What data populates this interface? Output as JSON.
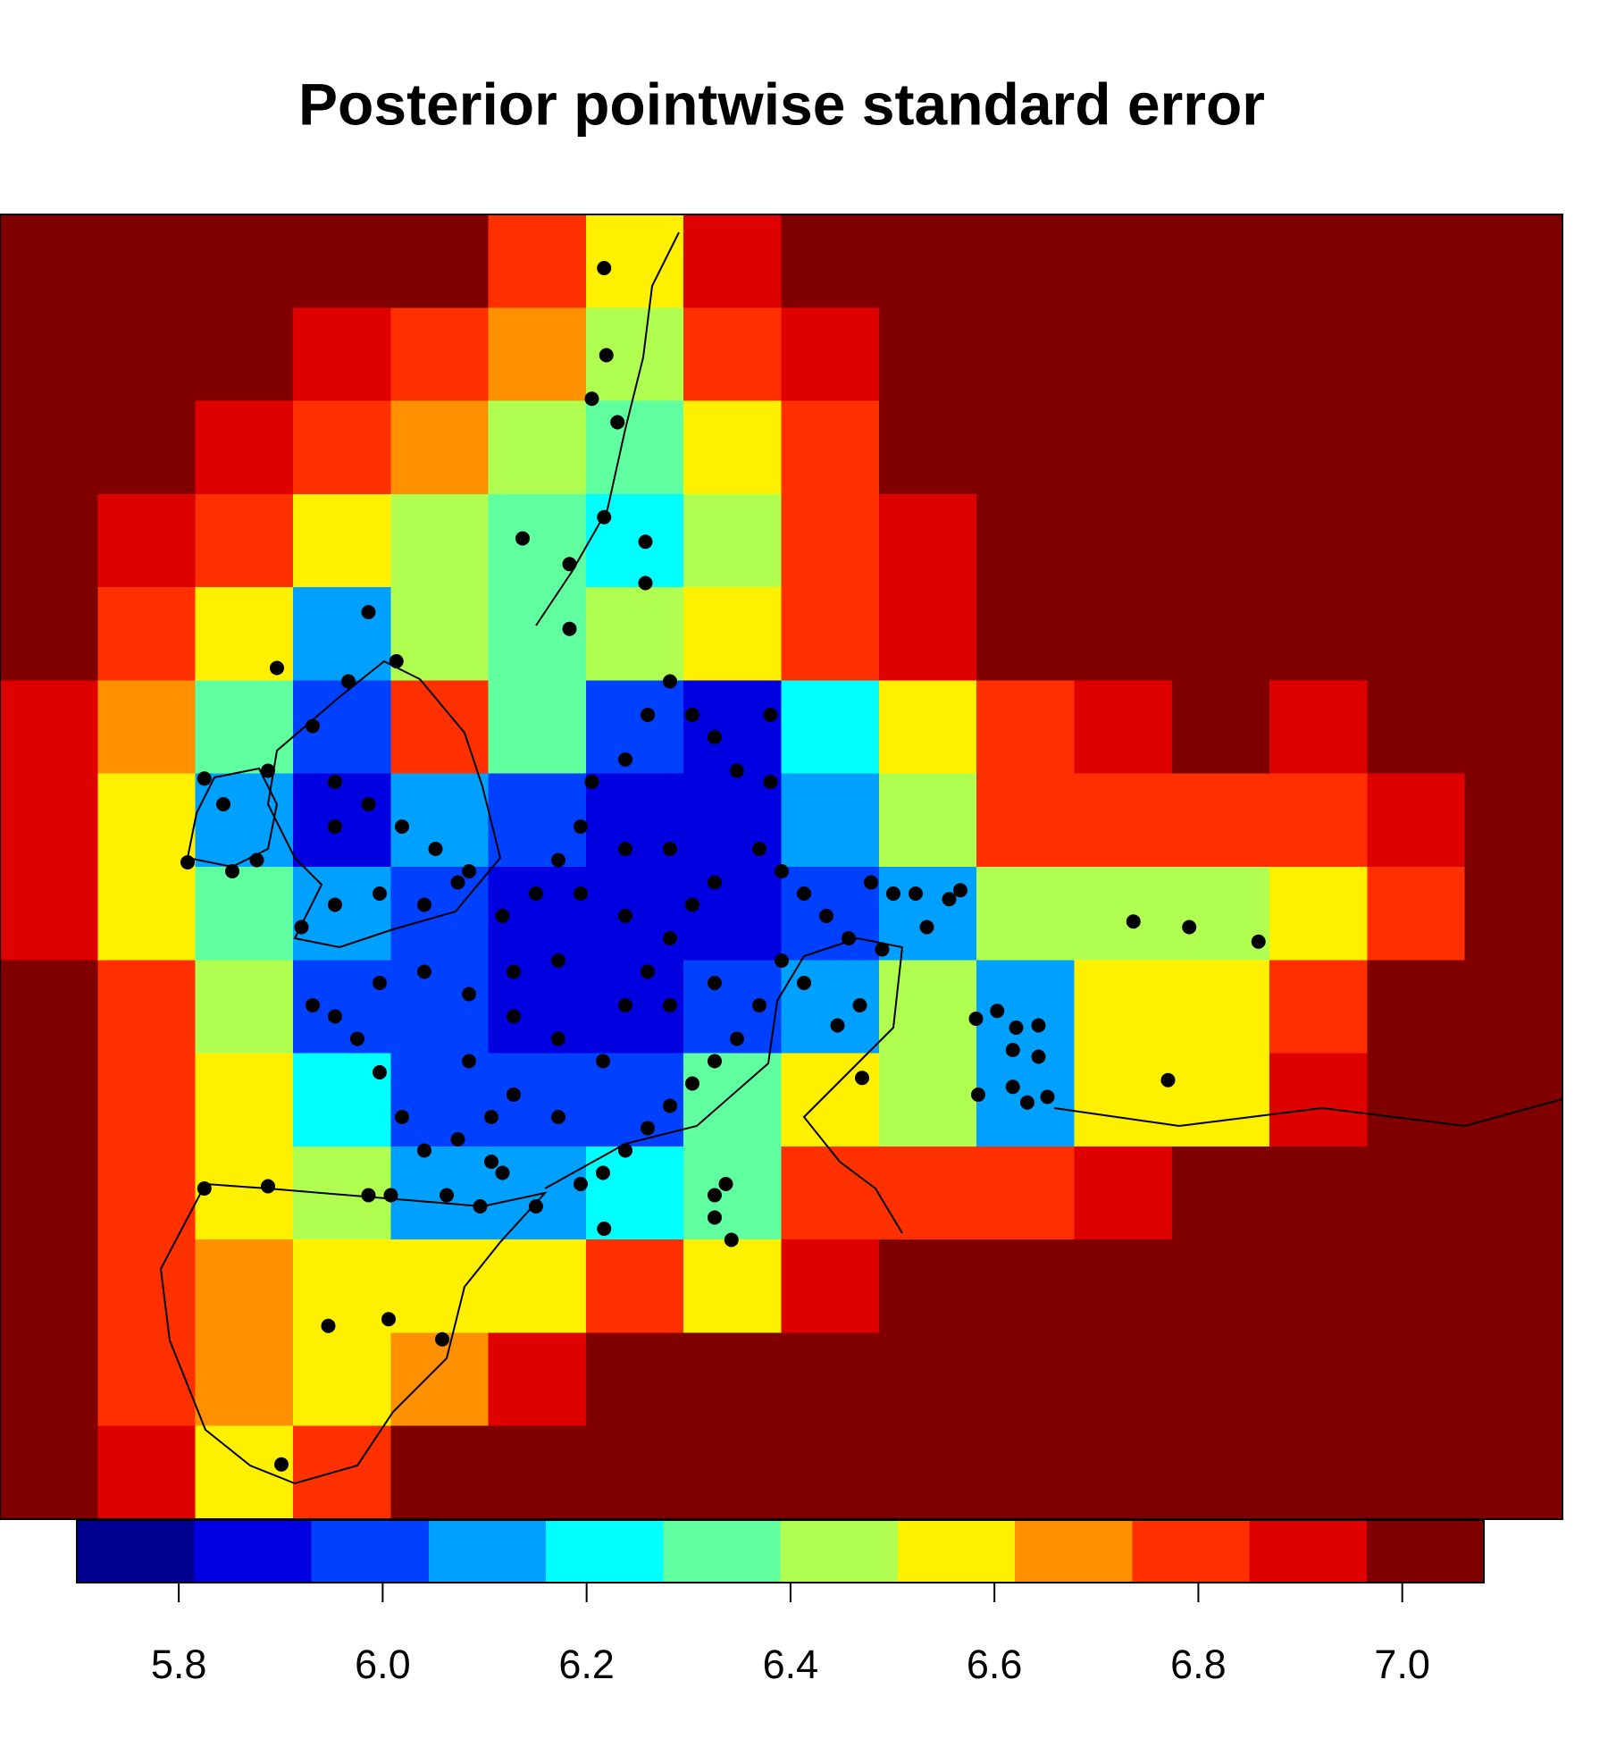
{
  "chart_data": {
    "type": "heatmap",
    "title": "Posterior pointwise standard error",
    "values": [
      [
        7.05,
        7.05,
        7.05,
        7.05,
        7.0,
        6.8,
        6.55,
        6.9,
        7.05,
        7.05,
        7.05,
        7.05,
        7.05,
        7.05,
        7.05,
        7.05
      ],
      [
        7.05,
        7.05,
        7.05,
        6.95,
        6.85,
        6.7,
        6.4,
        6.75,
        6.95,
        7.05,
        7.05,
        7.05,
        7.05,
        7.05,
        7.05,
        7.05
      ],
      [
        7.05,
        7.05,
        6.95,
        6.85,
        6.7,
        6.45,
        6.3,
        6.6,
        6.85,
        7.0,
        7.05,
        7.05,
        7.05,
        7.05,
        7.05,
        7.05
      ],
      [
        7.05,
        6.95,
        6.8,
        6.6,
        6.45,
        6.3,
        6.2,
        6.5,
        6.8,
        6.95,
        7.05,
        7.05,
        7.05,
        7.05,
        7.05,
        7.05
      ],
      [
        7.0,
        6.85,
        6.6,
        6.15,
        6.45,
        6.35,
        6.4,
        6.55,
        6.75,
        6.9,
        7.0,
        7.05,
        7.05,
        7.05,
        7.05,
        7.05
      ],
      [
        6.95,
        6.7,
        6.35,
        5.95,
        6.75,
        6.3,
        5.95,
        5.9,
        6.2,
        6.6,
        6.85,
        6.95,
        7.0,
        6.95,
        7.05,
        7.05
      ],
      [
        6.9,
        6.55,
        6.05,
        5.9,
        6.05,
        6.0,
        5.9,
        5.85,
        6.1,
        6.5,
        6.75,
        6.85,
        6.85,
        6.8,
        6.95,
        7.05
      ],
      [
        6.9,
        6.6,
        6.3,
        6.05,
        6.0,
        5.9,
        5.85,
        5.85,
        6.0,
        6.15,
        6.45,
        6.5,
        6.45,
        6.6,
        6.85,
        7.05
      ],
      [
        7.0,
        6.75,
        6.4,
        5.95,
        5.95,
        5.9,
        5.9,
        5.95,
        6.15,
        6.4,
        6.1,
        6.55,
        6.6,
        6.85,
        7.0,
        7.05
      ],
      [
        7.05,
        6.85,
        6.55,
        6.25,
        5.95,
        5.95,
        6.0,
        6.35,
        6.55,
        6.5,
        6.15,
        6.55,
        6.6,
        6.9,
        7.05,
        7.05
      ],
      [
        7.0,
        6.75,
        6.55,
        6.5,
        6.05,
        6.1,
        6.2,
        6.3,
        6.75,
        6.85,
        6.85,
        6.95,
        7.05,
        7.05,
        7.05,
        7.05
      ],
      [
        7.0,
        6.75,
        6.65,
        6.55,
        6.6,
        6.6,
        6.75,
        6.55,
        6.9,
        7.05,
        7.05,
        7.05,
        7.05,
        7.05,
        7.05,
        7.05
      ],
      [
        7.05,
        6.85,
        6.7,
        6.55,
        6.7,
        6.95,
        7.05,
        7.05,
        7.05,
        7.05,
        7.05,
        7.05,
        7.05,
        7.05,
        7.05,
        7.05
      ],
      [
        7.05,
        6.95,
        6.6,
        6.8,
        7.0,
        7.05,
        7.05,
        7.05,
        7.05,
        7.05,
        7.05,
        7.05,
        7.05,
        7.05,
        7.05,
        7.05
      ]
    ],
    "colorbar_lim": [
      5.7,
      7.08
    ],
    "colorbar_ticks": [
      5.8,
      {
        "value": 6,
        "label": "6.0"
      },
      6.2,
      6.4,
      6.6,
      6.8,
      {
        "value": 7,
        "label": "7.0"
      }
    ],
    "colors": [
      "#000090",
      "#0000E0",
      "#0040FF",
      "#00A0FF",
      "#00FFFF",
      "#60FFA0",
      "#B0FF50",
      "#FFF000",
      "#FF9000",
      "#FF3000",
      "#DF0000",
      "#800000"
    ]
  }
}
